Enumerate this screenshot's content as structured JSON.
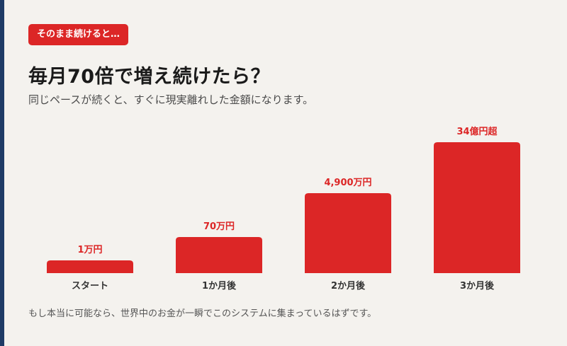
{
  "header": {
    "badge_label": "そのまま続けると…",
    "title": "毎月70倍で増え続けたら？",
    "subtitle": "同じペースが続くと、すぐに現実離れした金額になります。"
  },
  "footer": {
    "note": "もし本当に可能なら、世界中のお金が一瞬でこのシステムに集まっているはずです。"
  },
  "colors": {
    "bar": "#dc2626",
    "value_label": "#dc2626",
    "category_label": "#333333"
  },
  "chart_data": {
    "type": "bar",
    "categories": [
      "スタート",
      "1か月後",
      "2か月後",
      "3か月後"
    ],
    "values": [
      10000,
      700000,
      49000000,
      3400000000
    ],
    "value_labels": [
      "1万円",
      "70万円",
      "4,900万円",
      "34億円超"
    ],
    "title": "",
    "xlabel": "",
    "ylabel": "",
    "scale": "non-linear (illustrative)",
    "display_levels": [
      0.09,
      0.26,
      0.58,
      0.95
    ],
    "grid": false,
    "legend": "none"
  }
}
